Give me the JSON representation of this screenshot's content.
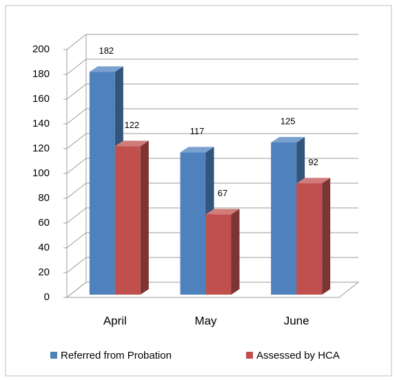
{
  "chart_data": {
    "type": "bar3d",
    "categories": [
      "April",
      "May",
      "June"
    ],
    "series": [
      {
        "name": "Referred from Probation",
        "color": "#4f81bd",
        "values": [
          182,
          117,
          125
        ]
      },
      {
        "name": "Assessed by HCA",
        "color": "#c0504d",
        "values": [
          122,
          67,
          92
        ]
      }
    ],
    "ylim": [
      0,
      200
    ],
    "yticks": [
      0,
      20,
      40,
      60,
      80,
      100,
      120,
      140,
      160,
      180,
      200
    ],
    "grid": true,
    "legend": "bottom"
  }
}
